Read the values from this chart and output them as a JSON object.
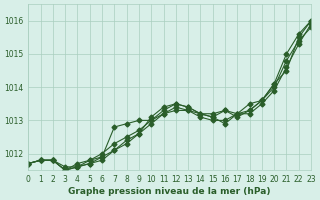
{
  "title": "Graphe pression niveau de la mer (hPa)",
  "xlim": [
    0,
    23
  ],
  "ylim": [
    1011.5,
    1016.5
  ],
  "yticks": [
    1012,
    1013,
    1014,
    1015,
    1016
  ],
  "xticks": [
    0,
    1,
    2,
    3,
    4,
    5,
    6,
    7,
    8,
    9,
    10,
    11,
    12,
    13,
    14,
    15,
    16,
    17,
    18,
    19,
    20,
    21,
    22,
    23
  ],
  "background_color": "#d8efe8",
  "grid_color": "#aacfbf",
  "line_color": "#2a5e2a",
  "line1": [
    1011.7,
    1011.8,
    1011.8,
    1011.6,
    1011.6,
    1011.7,
    1011.8,
    1012.1,
    1012.3,
    1012.6,
    1013.1,
    1013.4,
    1013.5,
    1013.4,
    1013.2,
    1013.2,
    1013.3,
    1013.2,
    1013.5,
    1013.6,
    1014.1,
    1015.0,
    1015.6,
    1016.0
  ],
  "line2": [
    1011.7,
    1011.8,
    1011.8,
    1011.5,
    1011.6,
    1011.7,
    1011.9,
    1012.8,
    1012.9,
    1013.0,
    1013.0,
    1013.3,
    1013.5,
    1013.4,
    1013.2,
    1013.1,
    1012.9,
    1013.2,
    1013.3,
    1013.6,
    1014.1,
    1014.5,
    1015.5,
    1016.0
  ],
  "line3": [
    1011.7,
    1011.8,
    1011.8,
    1011.5,
    1011.7,
    1011.8,
    1012.0,
    1012.3,
    1012.5,
    1012.7,
    1013.0,
    1013.2,
    1013.4,
    1013.3,
    1013.2,
    1013.1,
    1013.3,
    1013.1,
    1013.3,
    1013.6,
    1014.0,
    1014.8,
    1015.4,
    1015.8
  ],
  "line4": [
    1011.7,
    1011.8,
    1011.8,
    1011.5,
    1011.6,
    1011.8,
    1011.9,
    1012.1,
    1012.4,
    1012.6,
    1012.9,
    1013.2,
    1013.3,
    1013.3,
    1013.1,
    1013.0,
    1013.0,
    1013.2,
    1013.2,
    1013.5,
    1013.9,
    1014.6,
    1015.3,
    1015.9
  ]
}
